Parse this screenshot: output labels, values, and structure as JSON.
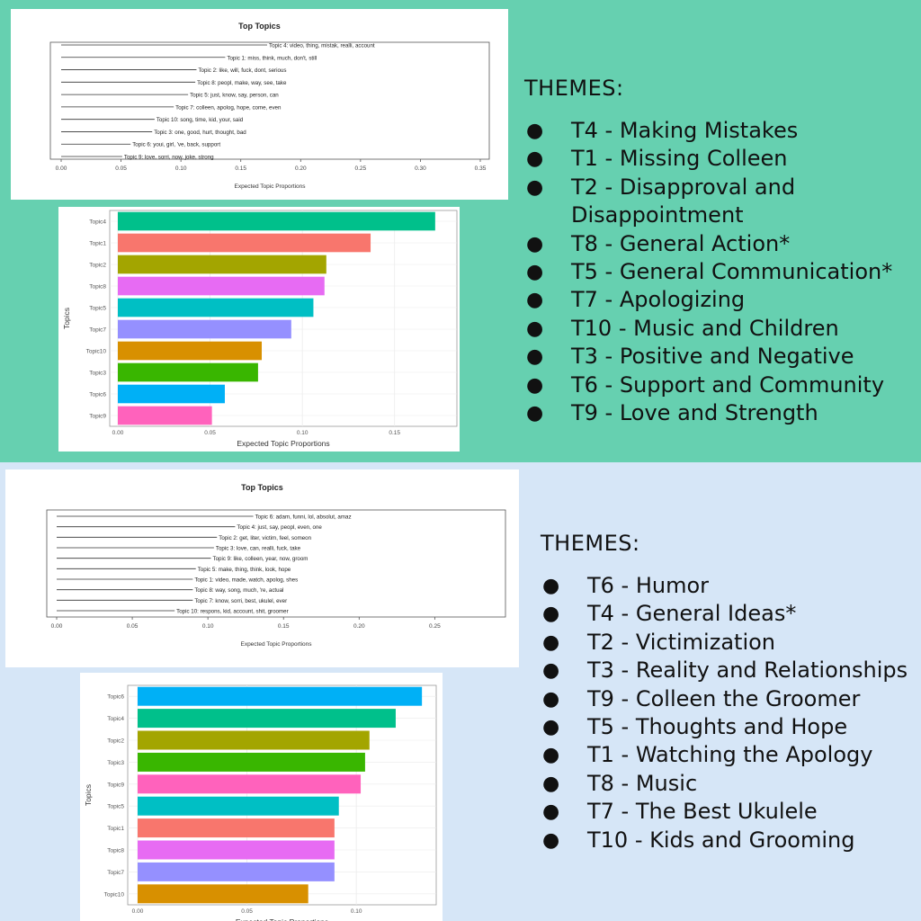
{
  "top": {
    "themes_heading": "THEMES:",
    "themes": [
      "T4 - Making Mistakes",
      "T1 - Missing Colleen",
      "T2 - Disapproval and Disappointment",
      "T8 - General Action*",
      "T5 - General Communication*",
      "T7 - Apologizing",
      "T10 - Music and Children",
      "T3 - Positive and Negative",
      "T6 - Support and Community",
      "T9 - Love and Strength"
    ]
  },
  "bottom": {
    "themes_heading": "THEMES:",
    "themes": [
      "T6 - Humor",
      "T4 - General Ideas*",
      "T2 - Victimization",
      "T3 - Reality and Relationships",
      "T9 - Colleen the Groomer",
      "T5 - Thoughts and Hope",
      "T1 - Watching the Apology",
      "T8 - Music",
      "T7 - The Best Ukulele",
      "T10 - Kids and Grooming"
    ]
  },
  "chart_data": [
    {
      "type": "line",
      "title": "Top Topics",
      "xlabel": "Expected Topic Proportions",
      "xlim": [
        0,
        0.35
      ],
      "xticks": [
        "0.00",
        "0.05",
        "0.10",
        "0.15",
        "0.20",
        "0.25",
        "0.30",
        "0.35"
      ],
      "topics": [
        {
          "label": "Topic 4: video, thing, mistak, realli, account",
          "value": 0.172
        },
        {
          "label": "Topic 1: miss, think, much, don't, still",
          "value": 0.137
        },
        {
          "label": "Topic 2: like, will, fuck, dont, serious",
          "value": 0.113
        },
        {
          "label": "Topic 8: peopl, make, way, see, take",
          "value": 0.112
        },
        {
          "label": "Topic 5: just, know, say, person, can",
          "value": 0.106
        },
        {
          "label": "Topic 7: colleen, apolog, hope, come, even",
          "value": 0.094
        },
        {
          "label": "Topic 10: song, time, kid, your, said",
          "value": 0.078
        },
        {
          "label": "Topic 3: one, good, hurt, thought, bad",
          "value": 0.076
        },
        {
          "label": "Topic 6: youi, girl, 've, back, support",
          "value": 0.058
        },
        {
          "label": "Topic 9: love, sorri, now, joke, strong",
          "value": 0.051
        }
      ]
    },
    {
      "type": "bar",
      "xlabel": "Expected Topic Proportions",
      "ylabel": "Topics",
      "xlim": [
        0,
        0.175
      ],
      "xticks": [
        "0.00",
        "0.05",
        "0.10",
        "0.15"
      ],
      "categories": [
        "Topic4",
        "Topic1",
        "Topic2",
        "Topic8",
        "Topic5",
        "Topic7",
        "Topic10",
        "Topic3",
        "Topic6",
        "Topic9"
      ],
      "values": [
        0.172,
        0.137,
        0.113,
        0.112,
        0.106,
        0.094,
        0.078,
        0.076,
        0.058,
        0.051
      ],
      "colors": [
        "#00c08b",
        "#f8766d",
        "#a3a500",
        "#e76bf3",
        "#00bfc4",
        "#9590ff",
        "#d89000",
        "#39b600",
        "#00b0f6",
        "#ff62bc"
      ]
    },
    {
      "type": "line",
      "title": "Top Topics",
      "xlabel": "Expected Topic Proportions",
      "xlim": [
        0,
        0.27
      ],
      "xticks": [
        "0.00",
        "0.05",
        "0.10",
        "0.15",
        "0.20",
        "0.25"
      ],
      "topics": [
        {
          "label": "Topic 6: adam, funni, lol, absolut, amaz",
          "value": 0.13
        },
        {
          "label": "Topic 4: just, say, peopl, even, one",
          "value": 0.118
        },
        {
          "label": "Topic 2: get, liter, victim, feel, someon",
          "value": 0.106
        },
        {
          "label": "Topic 3: love, can, realli, fuck, take",
          "value": 0.104
        },
        {
          "label": "Topic 9: like, colleen, year, now, groom",
          "value": 0.102
        },
        {
          "label": "Topic 5: make, thing, think, look, hope",
          "value": 0.092
        },
        {
          "label": "Topic 1: video, made, watch, apolog, shes",
          "value": 0.09
        },
        {
          "label": "Topic 8: way, song, much, 're, actual",
          "value": 0.09
        },
        {
          "label": "Topic 7: know, sorri, best, ukulel, ever",
          "value": 0.09
        },
        {
          "label": "Topic 10: respons, kid, account, shit, groomer",
          "value": 0.078
        }
      ]
    },
    {
      "type": "bar",
      "xlabel": "Expected Topic Proportions",
      "ylabel": "Topics",
      "xlim": [
        0,
        0.132
      ],
      "xticks": [
        "0.00",
        "0.05",
        "0.10"
      ],
      "categories": [
        "Topic6",
        "Topic4",
        "Topic2",
        "Topic3",
        "Topic9",
        "Topic5",
        "Topic1",
        "Topic8",
        "Topic7",
        "Topic10"
      ],
      "values": [
        0.13,
        0.118,
        0.106,
        0.104,
        0.102,
        0.092,
        0.09,
        0.09,
        0.09,
        0.078
      ],
      "colors": [
        "#00b0f6",
        "#00c08b",
        "#a3a500",
        "#39b600",
        "#ff62bc",
        "#00bfc4",
        "#f8766d",
        "#e76bf3",
        "#9590ff",
        "#d89000"
      ]
    }
  ]
}
